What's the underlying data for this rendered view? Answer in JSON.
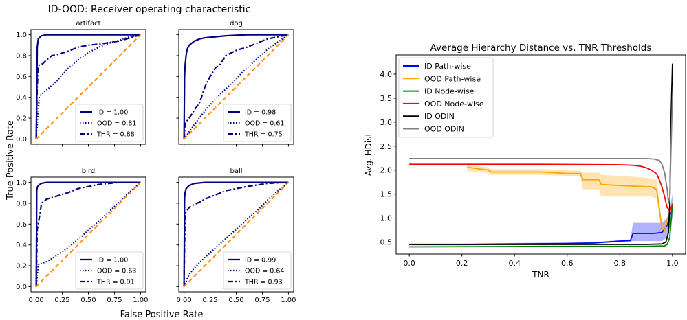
{
  "figure": {
    "left_title": "ID-OOD: Receiver operating characteristic",
    "left_xlabel": "False Positive Rate",
    "left_ylabel": "True Positive Rate"
  },
  "colors": {
    "roc_line": "#000080",
    "diagonal": "#ff8c00",
    "id_path": "#0000ff",
    "ood_path": "#ffa500",
    "id_node": "#008000",
    "ood_node": "#ff0000",
    "id_odin": "#000000",
    "ood_odin": "#808080"
  },
  "chart_data": [
    {
      "type": "line",
      "title": "artifact",
      "xlim": [
        0,
        1
      ],
      "ylim": [
        0,
        1
      ],
      "xticks": [
        "0.00",
        "0.25",
        "0.50",
        "0.75",
        "1.00"
      ],
      "yticks": [
        "0.0",
        "0.2",
        "0.4",
        "0.6",
        "0.8",
        "1.0"
      ],
      "show_xticks": false,
      "show_yticks": true,
      "legend_position": "lower-right",
      "series": [
        {
          "name": "ID = 1.00",
          "style": "solid",
          "x": [
            0,
            0.005,
            0.01,
            0.02,
            0.05,
            0.1,
            1
          ],
          "y": [
            0,
            0.4,
            0.88,
            0.96,
            0.99,
            1.0,
            1.0
          ]
        },
        {
          "name": "OOD = 0.81",
          "style": "dotted",
          "x": [
            0,
            0.03,
            0.1,
            0.2,
            0.3,
            0.4,
            0.5,
            0.6,
            0.7,
            0.8,
            0.9,
            1.0
          ],
          "y": [
            0,
            0.41,
            0.47,
            0.56,
            0.67,
            0.76,
            0.83,
            0.88,
            0.92,
            0.95,
            0.98,
            1.0
          ]
        },
        {
          "name": "THR = 0.88",
          "style": "dashdot",
          "x": [
            0,
            0.01,
            0.02,
            0.03,
            0.06,
            0.1,
            0.15,
            0.2,
            0.3,
            0.4,
            0.5,
            0.6,
            0.8,
            0.9,
            1.0
          ],
          "y": [
            0,
            0.5,
            0.7,
            0.71,
            0.72,
            0.76,
            0.8,
            0.81,
            0.84,
            0.88,
            0.9,
            0.91,
            0.94,
            0.97,
            1.0
          ]
        },
        {
          "name": "",
          "style": "diagonal",
          "x": [
            0,
            1
          ],
          "y": [
            0,
            1
          ]
        }
      ]
    },
    {
      "type": "line",
      "title": "dog",
      "xlim": [
        0,
        1
      ],
      "ylim": [
        0,
        1
      ],
      "xticks": [
        "0.00",
        "0.25",
        "0.50",
        "0.75",
        "1.00"
      ],
      "yticks": [
        "0.0",
        "0.2",
        "0.4",
        "0.6",
        "0.8",
        "1.0"
      ],
      "show_xticks": false,
      "show_yticks": false,
      "legend_position": "lower-right",
      "series": [
        {
          "name": "ID = 0.98",
          "style": "solid",
          "x": [
            0,
            0.005,
            0.01,
            0.02,
            0.03,
            0.05,
            0.1,
            0.15,
            0.2,
            0.3,
            0.4,
            0.6,
            1.0
          ],
          "y": [
            0,
            0.6,
            0.7,
            0.8,
            0.86,
            0.9,
            0.94,
            0.96,
            0.97,
            0.98,
            0.99,
            1.0,
            1.0
          ]
        },
        {
          "name": "OOD = 0.61",
          "style": "dotted",
          "x": [
            0,
            0.1,
            0.2,
            0.3,
            0.4,
            0.5,
            0.6,
            0.7,
            0.8,
            0.9,
            1.0
          ],
          "y": [
            0,
            0.14,
            0.27,
            0.38,
            0.48,
            0.58,
            0.68,
            0.77,
            0.86,
            0.93,
            1.0
          ]
        },
        {
          "name": "THR = 0.75",
          "style": "dashdot",
          "x": [
            0,
            0.01,
            0.05,
            0.1,
            0.15,
            0.2,
            0.25,
            0.3,
            0.35,
            0.4,
            0.5,
            0.6,
            0.7,
            0.8,
            0.9,
            1.0
          ],
          "y": [
            0,
            0.15,
            0.2,
            0.28,
            0.35,
            0.5,
            0.6,
            0.68,
            0.72,
            0.8,
            0.85,
            0.88,
            0.92,
            0.96,
            0.98,
            1.0
          ]
        },
        {
          "name": "",
          "style": "diagonal",
          "x": [
            0,
            1
          ],
          "y": [
            0,
            1
          ]
        }
      ]
    },
    {
      "type": "line",
      "title": "bird",
      "xlim": [
        0,
        1
      ],
      "ylim": [
        0,
        1
      ],
      "xticks": [
        "0.00",
        "0.25",
        "0.50",
        "0.75",
        "1.00"
      ],
      "yticks": [
        "0.0",
        "0.2",
        "0.4",
        "0.6",
        "0.8",
        "1.0"
      ],
      "show_xticks": true,
      "show_yticks": true,
      "legend_position": "lower-right",
      "series": [
        {
          "name": "ID = 1.00",
          "style": "solid",
          "x": [
            0,
            0.005,
            0.01,
            0.02,
            0.05,
            0.1,
            1.0
          ],
          "y": [
            0,
            0.92,
            0.95,
            0.97,
            0.99,
            1.0,
            1.0
          ]
        },
        {
          "name": "OOD = 0.63",
          "style": "dotted",
          "x": [
            0,
            0.02,
            0.1,
            0.2,
            0.3,
            0.4,
            0.5,
            0.6,
            0.7,
            0.8,
            0.9,
            1.0
          ],
          "y": [
            0,
            0.21,
            0.24,
            0.3,
            0.37,
            0.45,
            0.54,
            0.63,
            0.72,
            0.82,
            0.91,
            1.0
          ]
        },
        {
          "name": "THR = 0.91",
          "style": "dashdot",
          "x": [
            0,
            0.01,
            0.04,
            0.05,
            0.1,
            0.2,
            0.3,
            0.4,
            0.5,
            0.6,
            0.8,
            1.0
          ],
          "y": [
            0,
            0.55,
            0.72,
            0.8,
            0.84,
            0.87,
            0.9,
            0.94,
            0.96,
            0.98,
            1.0,
            1.0
          ]
        },
        {
          "name": "",
          "style": "diagonal",
          "x": [
            0,
            1
          ],
          "y": [
            0,
            1
          ]
        }
      ]
    },
    {
      "type": "line",
      "title": "ball",
      "xlim": [
        0,
        1
      ],
      "ylim": [
        0,
        1
      ],
      "xticks": [
        "0.00",
        "0.25",
        "0.50",
        "0.75",
        "1.00"
      ],
      "yticks": [
        "0.0",
        "0.2",
        "0.4",
        "0.6",
        "0.8",
        "1.0"
      ],
      "show_xticks": true,
      "show_yticks": false,
      "legend_position": "lower-right",
      "series": [
        {
          "name": "ID = 0.99",
          "style": "solid",
          "x": [
            0,
            0.005,
            0.01,
            0.02,
            0.05,
            0.1,
            0.2,
            1.0
          ],
          "y": [
            0,
            0.85,
            0.9,
            0.94,
            0.97,
            0.99,
            1.0,
            1.0
          ]
        },
        {
          "name": "OOD = 0.64",
          "style": "dotted",
          "x": [
            0,
            0.05,
            0.1,
            0.2,
            0.3,
            0.4,
            0.5,
            0.6,
            0.7,
            0.8,
            0.9,
            1.0
          ],
          "y": [
            0,
            0.12,
            0.18,
            0.28,
            0.37,
            0.46,
            0.55,
            0.64,
            0.73,
            0.83,
            0.92,
            1.0
          ]
        },
        {
          "name": "THR = 0.93",
          "style": "dashdot",
          "x": [
            0,
            0.01,
            0.05,
            0.1,
            0.15,
            0.2,
            0.3,
            0.4,
            0.6,
            0.8,
            1.0
          ],
          "y": [
            0,
            0.7,
            0.76,
            0.79,
            0.81,
            0.84,
            0.88,
            0.92,
            0.96,
            0.99,
            1.0
          ]
        },
        {
          "name": "",
          "style": "diagonal",
          "x": [
            0,
            1
          ],
          "y": [
            0,
            1
          ]
        }
      ]
    },
    {
      "type": "line",
      "title": "Average Hierarchy Distance vs. TNR Thresholds",
      "xlabel": "TNR",
      "ylabel": "Avg. HDist",
      "xlim": [
        -0.05,
        1.05
      ],
      "ylim": [
        0.25,
        4.4
      ],
      "xticks": [
        "0.0",
        "0.2",
        "0.4",
        "0.6",
        "0.8",
        "1.0"
      ],
      "yticks": [
        "0.5",
        "1.0",
        "1.5",
        "2.0",
        "2.5",
        "3.0",
        "3.5",
        "4.0"
      ],
      "legend_position": "upper-left",
      "series": [
        {
          "name": "ID Path-wise",
          "color": "#0000ff",
          "x": [
            0,
            0.2,
            0.4,
            0.6,
            0.7,
            0.75,
            0.8,
            0.84,
            0.85,
            0.93,
            0.96,
            0.98,
            0.99,
            1.0
          ],
          "y": [
            0.45,
            0.45,
            0.46,
            0.47,
            0.48,
            0.5,
            0.52,
            0.53,
            0.68,
            0.68,
            0.7,
            0.85,
            1.05,
            1.3
          ],
          "band_lower": [
            0.43,
            0.43,
            0.44,
            0.45,
            0.46,
            0.48,
            0.5,
            0.51,
            0.52,
            0.52,
            0.52,
            0.6,
            0.8,
            1.0
          ],
          "band_upper": [
            0.47,
            0.47,
            0.48,
            0.49,
            0.5,
            0.52,
            0.54,
            0.55,
            0.9,
            0.9,
            0.9,
            1.0,
            1.2,
            1.5
          ]
        },
        {
          "name": "OOD Path-wise",
          "color": "#ffa500",
          "x": [
            0.22,
            0.3,
            0.31,
            0.5,
            0.6,
            0.65,
            0.66,
            0.72,
            0.73,
            0.8,
            0.88,
            0.92,
            0.94,
            0.96,
            0.97,
            0.99,
            1.0
          ],
          "y": [
            2.06,
            2.0,
            1.96,
            1.96,
            1.93,
            1.93,
            1.8,
            1.8,
            1.7,
            1.68,
            1.66,
            1.65,
            1.6,
            0.78,
            0.75,
            1.1,
            1.3
          ],
          "band_lower": [
            1.98,
            1.94,
            1.9,
            1.9,
            1.88,
            1.87,
            1.6,
            1.6,
            1.45,
            1.45,
            1.45,
            1.45,
            1.4,
            0.7,
            0.68,
            1.0,
            1.2
          ],
          "band_upper": [
            2.1,
            2.06,
            2.02,
            2.02,
            1.99,
            1.99,
            1.95,
            1.95,
            1.9,
            1.88,
            1.85,
            1.83,
            1.8,
            0.9,
            0.85,
            1.2,
            1.4
          ]
        },
        {
          "name": "ID Node-wise",
          "color": "#008000",
          "x": [
            0,
            0.5,
            0.9,
            0.97,
            0.98,
            0.99,
            1.0
          ],
          "y": [
            0.4,
            0.41,
            0.41,
            0.42,
            0.45,
            0.6,
            1.3
          ]
        },
        {
          "name": "OOD Node-wise",
          "color": "#ff0000",
          "x": [
            0,
            0.5,
            0.8,
            0.85,
            0.88,
            0.9,
            0.92,
            0.94,
            0.95,
            0.96,
            0.97,
            0.98,
            0.99,
            1.0
          ],
          "y": [
            2.12,
            2.12,
            2.11,
            2.1,
            2.08,
            2.05,
            2.0,
            1.92,
            1.8,
            1.65,
            1.45,
            1.22,
            1.15,
            1.28
          ]
        },
        {
          "name": "ID ODIN",
          "color": "#000000",
          "x": [
            0,
            0.5,
            0.9,
            0.96,
            0.975,
            0.985,
            0.99,
            0.995,
            1.0
          ],
          "y": [
            0.45,
            0.45,
            0.45,
            0.46,
            0.5,
            0.7,
            1.3,
            3.2,
            4.22
          ]
        },
        {
          "name": "OOD ODIN",
          "color": "#808080",
          "x": [
            0,
            0.5,
            0.9,
            0.93,
            0.95,
            0.96,
            0.97,
            0.98,
            0.985,
            0.99,
            1.0
          ],
          "y": [
            2.24,
            2.24,
            2.24,
            2.23,
            2.2,
            2.12,
            1.95,
            1.6,
            1.3,
            1.45,
            3.55
          ]
        }
      ]
    }
  ]
}
